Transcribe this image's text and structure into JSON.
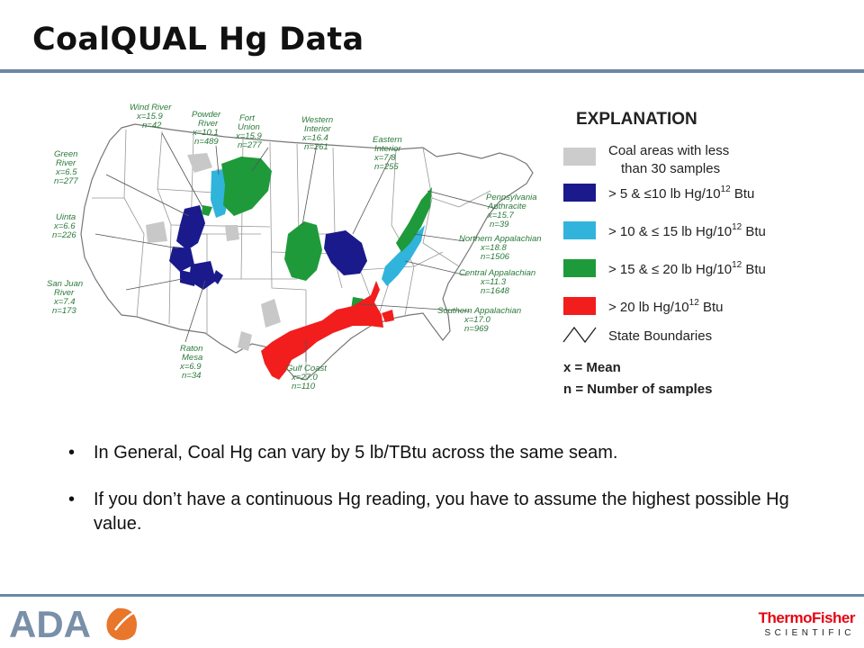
{
  "slide": {
    "title": "CoalQUAL Hg Data"
  },
  "map": {
    "regions": [
      {
        "name": "Wind River",
        "mean": "x=15.9",
        "n": "n=42"
      },
      {
        "name": "Powder River",
        "mean": "x=10.1",
        "n": "n=489"
      },
      {
        "name": "Fort Union",
        "mean": "x=15.9",
        "n": "n=277"
      },
      {
        "name": "Western Interior",
        "mean": "x=16.4",
        "n": "n=261"
      },
      {
        "name": "Eastern Interior",
        "mean": "x=7.8",
        "n": "n=255"
      },
      {
        "name": "Green River",
        "mean": "x=6.5",
        "n": "n=277"
      },
      {
        "name": "Uinta",
        "mean": "x=6.6",
        "n": "n=226"
      },
      {
        "name": "San Juan River",
        "mean": "x=7.4",
        "n": "n=173"
      },
      {
        "name": "Raton Mesa",
        "mean": "x=6.9",
        "n": "n=34"
      },
      {
        "name": "Gulf Coast",
        "mean": "x=27.0",
        "n": "n=110"
      },
      {
        "name": "Pennsylvania Anthracite",
        "mean": "x=15.7",
        "n": "n=39"
      },
      {
        "name": "Northern Appalachian",
        "mean": "x=18.8",
        "n": "n=1506"
      },
      {
        "name": "Central Appalachian",
        "mean": "x=11.3",
        "n": "n=1648"
      },
      {
        "name": "Southern Appalachian",
        "mean": "x=17.0",
        "n": "n=969"
      }
    ],
    "region_labels": {
      "wind1": "Wind River",
      "powder1": "Powder",
      "powder2": "River",
      "fort1": "Fort",
      "fort2": "Union",
      "west1": "Western",
      "west2": "Interior",
      "east1": "Eastern",
      "east2": "Interior",
      "green1": "Green",
      "green2": "River",
      "uinta1": "Uinta",
      "sanjuan1": "San Juan",
      "sanjuan2": "River",
      "raton1": "Raton",
      "raton2": "Mesa",
      "gulf1": "Gulf Coast",
      "penn1": "Pennsylvania",
      "penn2": "Anthracite",
      "napp1": "Northern Appalachian",
      "capp1": "Central Appalachian",
      "sapp1": "Southern Appalachian"
    },
    "legend": {
      "title": "EXPLANATION",
      "items": [
        {
          "text1": "Coal areas with less",
          "text2": "than 30 samples",
          "color": "#cccccc"
        },
        {
          "text": "> 5 &  ≤10 lb   Hg/10",
          "sup": "12",
          "unit": " Btu",
          "color": "#1a1a8c"
        },
        {
          "text": "> 10 & ≤ 15 lb   Hg/10",
          "sup": "12",
          "unit": " Btu",
          "color": "#30b4dc"
        },
        {
          "text": "> 15 & ≤ 20 lb   Hg/10",
          "sup": "12",
          "unit": " Btu",
          "color": "#1f9a3a"
        },
        {
          "text": "> 20 lb   Hg/10",
          "sup": "12",
          "unit": " Btu",
          "color": "#f21d1d"
        }
      ],
      "state_boundaries": "State Boundaries",
      "mean_def": "x = Mean",
      "n_def": "n = Number of samples"
    }
  },
  "bullets": [
    "In General, Coal Hg can vary by 5 lb/TBtu across the same seam.",
    "If you don’t have a continuous Hg reading, you have to assume the highest possible Hg value."
  ],
  "footer": {
    "left_logo": "ADA",
    "right_logo_name": "ThermoFisher",
    "right_logo_sub": "SCIENTIFIC"
  }
}
